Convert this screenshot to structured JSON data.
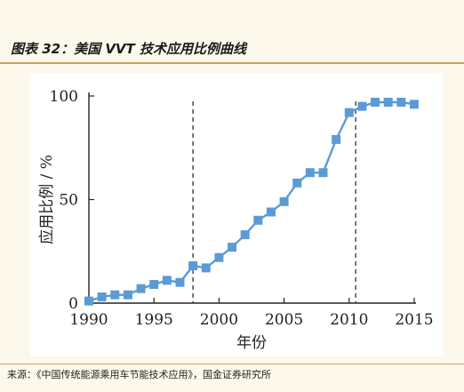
{
  "figure": {
    "title": "图表 32：美国 VVT 技术应用比例曲线",
    "source": "来源：《中国传统能源乘用车节能技术应用》，国金证券研究所"
  },
  "colors": {
    "series": "#5b9bd5",
    "axis": "#222222",
    "background": "#fdf8ec",
    "rule": "#c9a25e"
  },
  "chart_data": {
    "type": "line",
    "xlabel": "年份",
    "ylabel": "应用比例 / %",
    "xlim": [
      1990,
      2015
    ],
    "ylim": [
      0,
      100
    ],
    "xticks": [
      "1990",
      "1995",
      "2000",
      "2005",
      "2010",
      "2015"
    ],
    "yticks": [
      "0",
      "50",
      "100"
    ],
    "grid": false,
    "legend": "none",
    "x": [
      1990,
      1991,
      1992,
      1993,
      1994,
      1995,
      1996,
      1997,
      1998,
      1999,
      2000,
      2001,
      2002,
      2003,
      2004,
      2005,
      2006,
      2007,
      2008,
      2009,
      2010,
      2011,
      2012,
      2013,
      2014,
      2015
    ],
    "series": [
      {
        "values": [
          1,
          3,
          4,
          4,
          7,
          9,
          11,
          10,
          18,
          17,
          22,
          27,
          33,
          40,
          44,
          49,
          58,
          63,
          63,
          79,
          92,
          95,
          97,
          97,
          97,
          96
        ]
      }
    ],
    "reference_lines_x": [
      1998,
      2010.5
    ]
  }
}
